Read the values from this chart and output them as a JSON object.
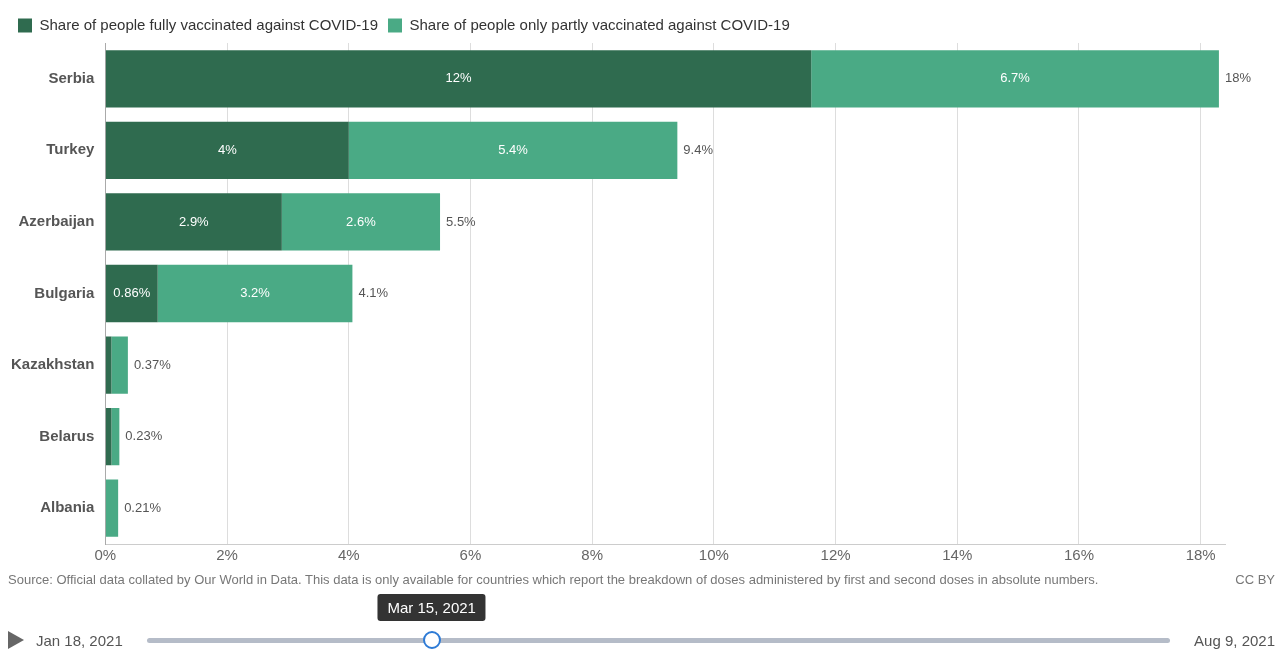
{
  "chart_data": {
    "type": "bar",
    "orientation": "horizontal",
    "stacked": true,
    "categories": [
      "Serbia",
      "Turkey",
      "Azerbaijan",
      "Bulgaria",
      "Kazakhstan",
      "Belarus",
      "Albania"
    ],
    "series": [
      {
        "name": "Share of people fully vaccinated against COVID-19",
        "color": "#2f6b4f",
        "values": [
          11.6,
          4,
          2.9,
          0.86,
          0.1,
          0.1,
          0
        ],
        "value_labels": [
          "12%",
          "4%",
          "2.9%",
          "0.86%",
          null,
          null,
          null
        ]
      },
      {
        "name": "Share of people only partly vaccinated against COVID-19",
        "color": "#4aaa85",
        "values": [
          6.7,
          5.4,
          2.6,
          3.2,
          0.27,
          0.13,
          0.21
        ],
        "value_labels": [
          "6.7%",
          "5.4%",
          "2.6%",
          "3.2%",
          null,
          null,
          null
        ]
      }
    ],
    "totals": [
      "18%",
      "9.4%",
      "5.5%",
      "4.1%",
      "0.37%",
      "0.23%",
      "0.21%"
    ],
    "xlim": [
      0,
      18.4
    ],
    "xticks": [
      {
        "value": 0,
        "label": "0%"
      },
      {
        "value": 2,
        "label": "2%"
      },
      {
        "value": 4,
        "label": "4%"
      },
      {
        "value": 6,
        "label": "6%"
      },
      {
        "value": 8,
        "label": "8%"
      },
      {
        "value": 10,
        "label": "10%"
      },
      {
        "value": 12,
        "label": "12%"
      },
      {
        "value": 14,
        "label": "14%"
      },
      {
        "value": 16,
        "label": "16%"
      },
      {
        "value": 18,
        "label": "18%"
      }
    ],
    "grid": "x",
    "legend": "top left",
    "annotations": [
      "Source: Official data collated by Our World in Data. This data is only available for countries which report the breakdown of doses administered by first and second doses in absolute numbers.",
      "CC BY",
      "Jan 18, 2021",
      "Mar 15, 2021",
      "Aug 9, 2021"
    ]
  }
}
